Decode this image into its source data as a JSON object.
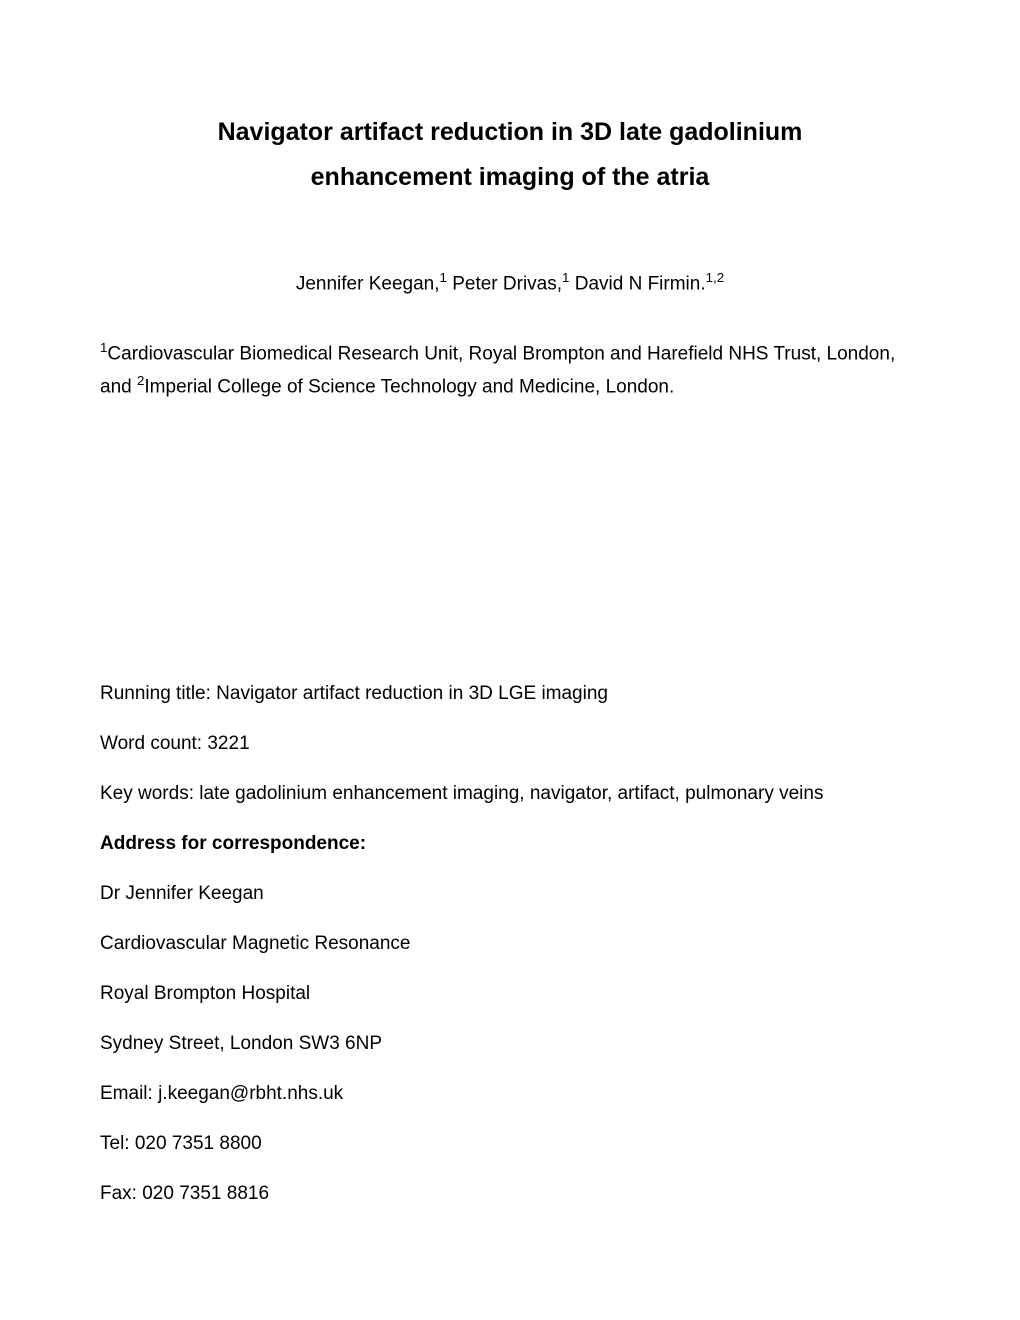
{
  "title": {
    "line1": "Navigator artifact reduction in 3D late gadolinium",
    "line2": "enhancement imaging of the atria"
  },
  "authors": {
    "a1_name": "Jennifer Keegan,",
    "a1_sup": "1",
    "a2_name": " Peter Drivas,",
    "a2_sup": "1",
    "a3_name": " David N Firmin.",
    "a3_sup": "1,2"
  },
  "affiliations": {
    "sup1": "1",
    "text1": "Cardiovascular Biomedical Research Unit, Royal Brompton and Harefield NHS Trust, London, and ",
    "sup2": "2",
    "text2": "Imperial College of Science Technology and Medicine, London."
  },
  "running_title": "Running title: Navigator artifact reduction in 3D LGE imaging",
  "word_count": "Word count: 3221",
  "keywords": "Key words: late gadolinium enhancement imaging, navigator, artifact, pulmonary veins",
  "correspondence": {
    "heading": "Address for correspondence:",
    "name": "Dr Jennifer Keegan",
    "dept": "Cardiovascular Magnetic Resonance",
    "hospital": "Royal Brompton Hospital",
    "address": "Sydney Street, London SW3 6NP",
    "email": "Email: j.keegan@rbht.nhs.uk",
    "tel": "Tel: 020 7351 8800",
    "fax": "Fax: 020 7351 8816"
  }
}
